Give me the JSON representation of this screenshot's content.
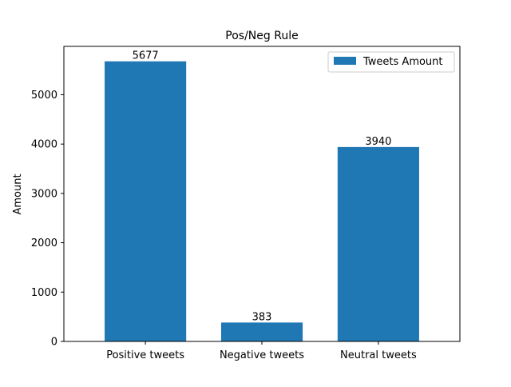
{
  "chart_data": {
    "type": "bar",
    "title": "Pos/Neg Rule",
    "xlabel": "",
    "ylabel": "Amount",
    "categories": [
      "Positive tweets",
      "Negative tweets",
      "Neutral tweets"
    ],
    "series": [
      {
        "name": "Tweets Amount",
        "values": [
          5677,
          383,
          3940
        ],
        "color": "#1f77b4"
      }
    ],
    "data_labels": [
      "5677",
      "383",
      "3940"
    ],
    "ylim": [
      0,
      5980
    ],
    "yticks": [
      0,
      1000,
      2000,
      3000,
      4000,
      5000
    ],
    "ytick_labels": [
      "0",
      "1000",
      "2000",
      "3000",
      "4000",
      "5000"
    ],
    "grid": false,
    "legend_position": "top-right"
  }
}
